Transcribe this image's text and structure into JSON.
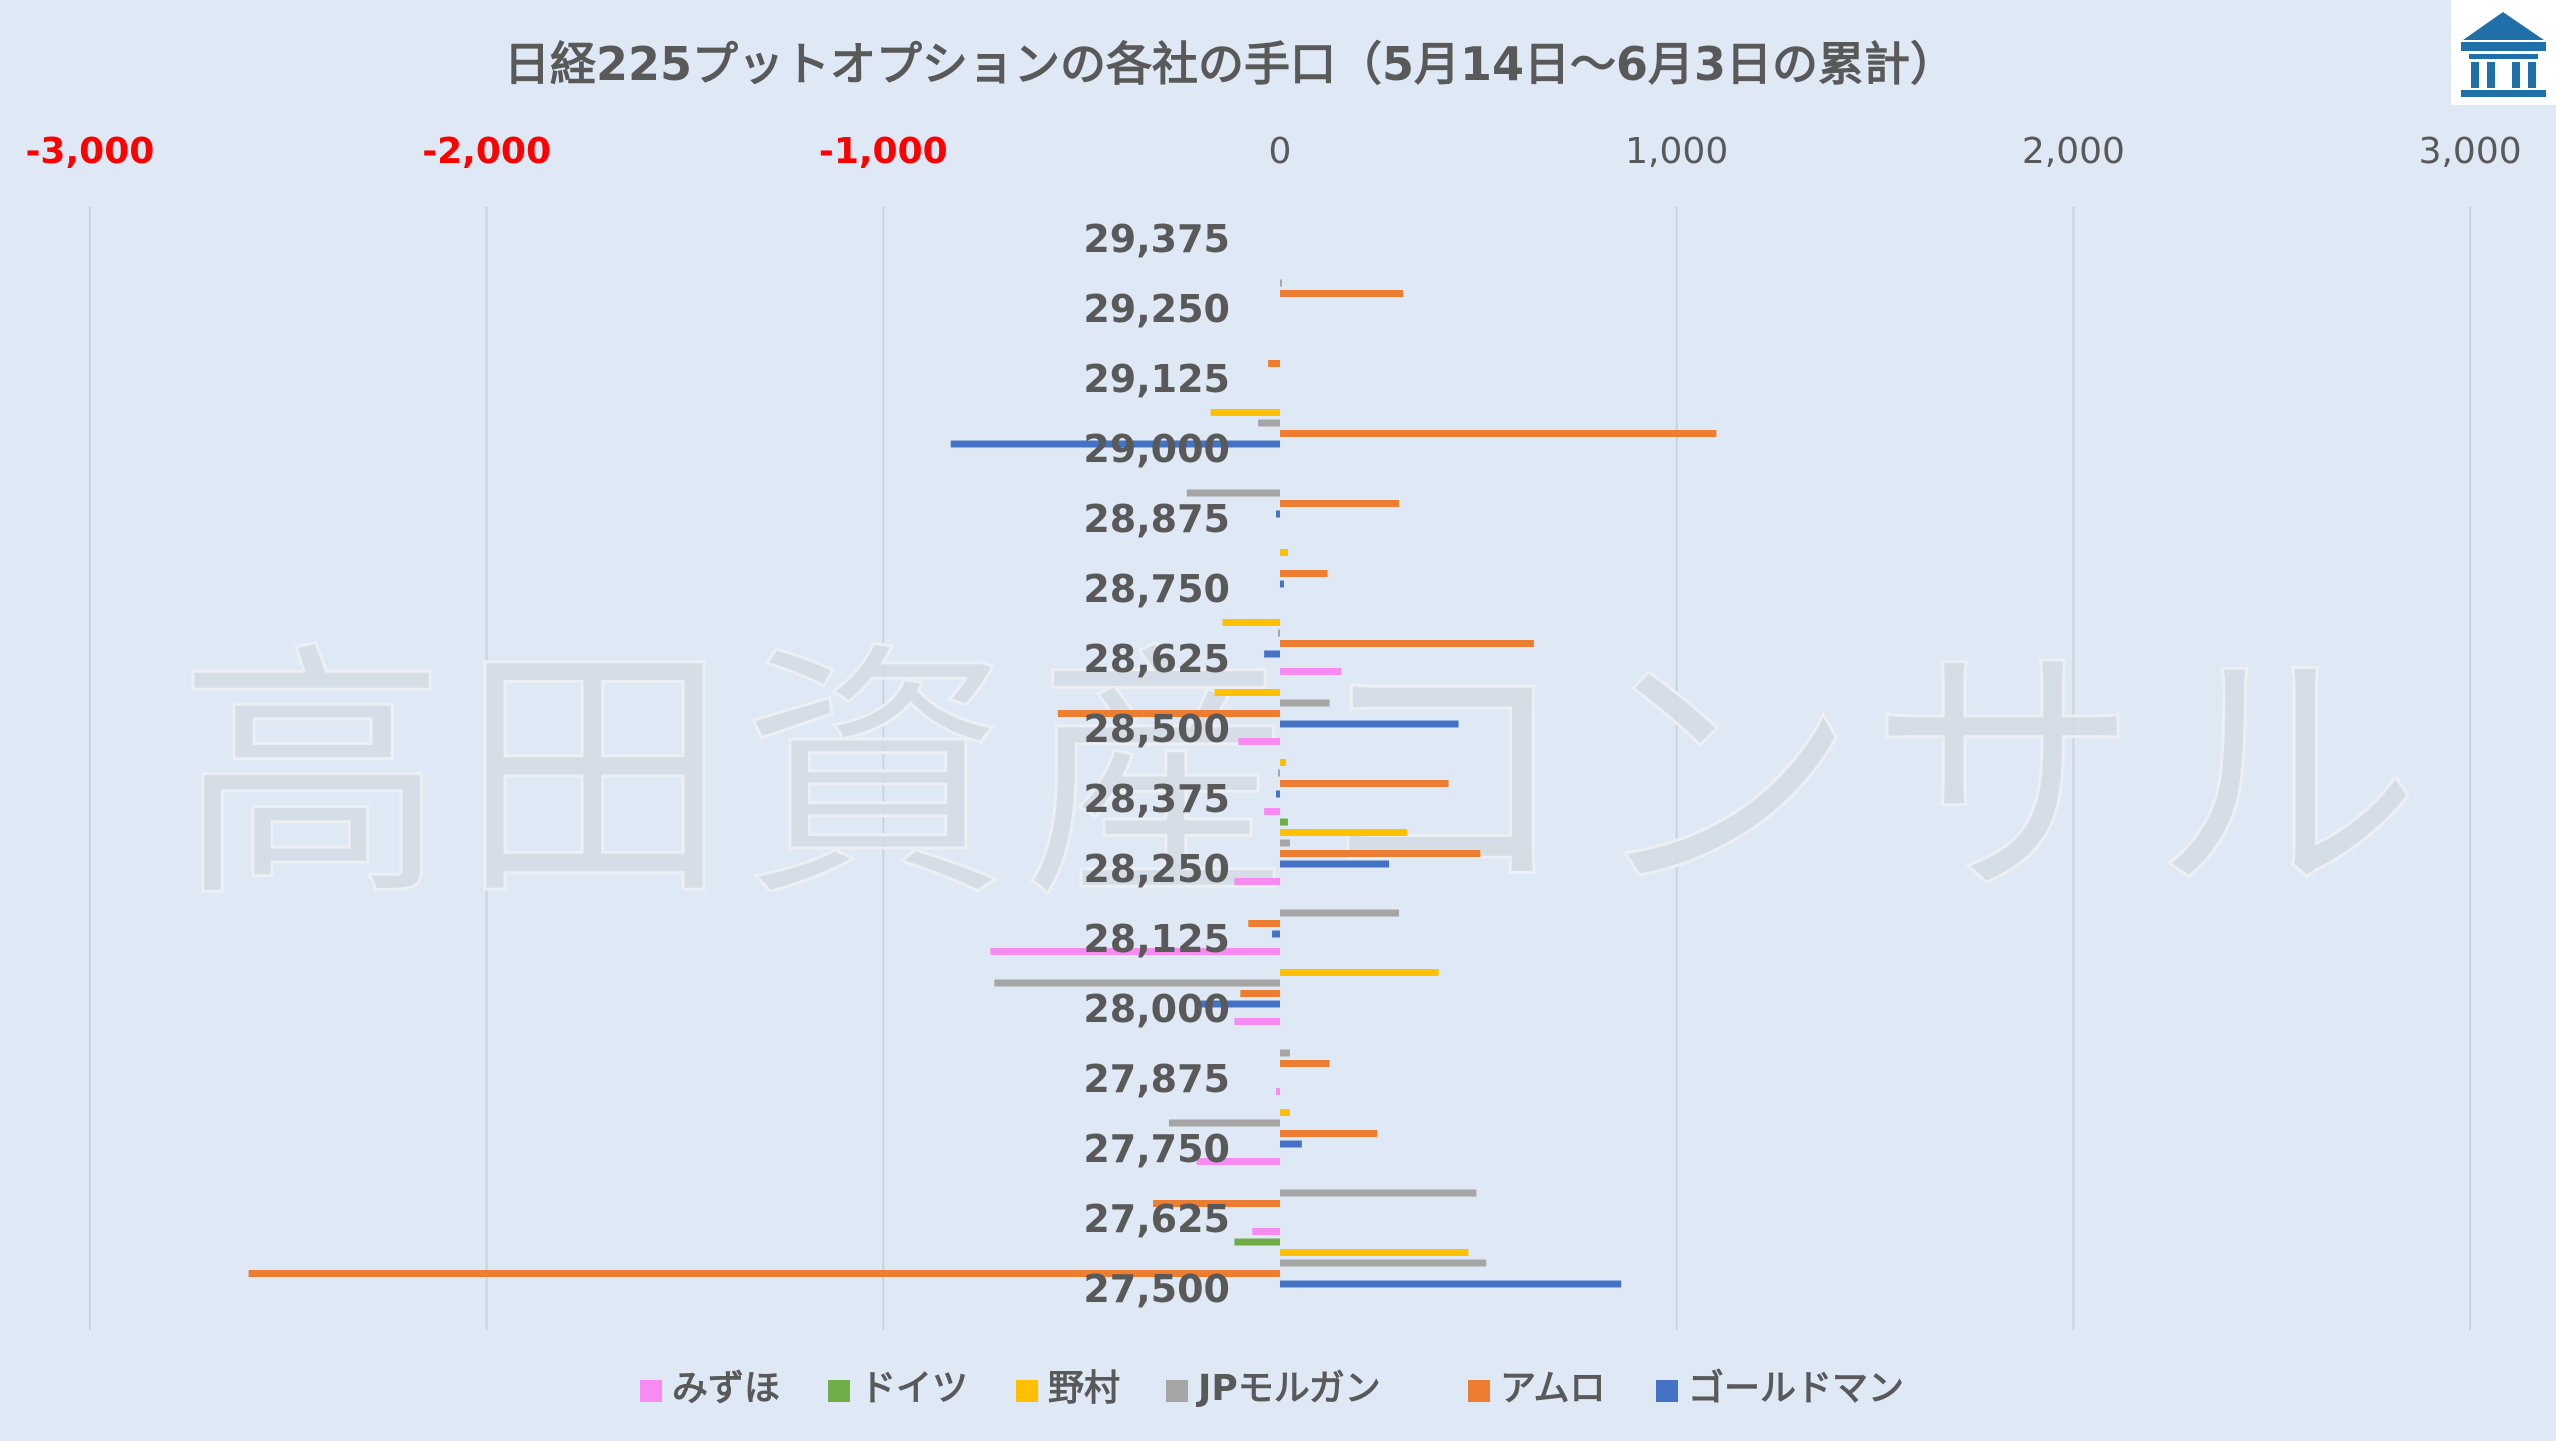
{
  "chart_data": {
    "type": "bar",
    "orientation": "horizontal",
    "title": "日経225プットオプションの各社の手口（5月14日〜6月3日の累計）",
    "xlabel": "",
    "ylabel": "",
    "xlim": [
      -3000,
      3000
    ],
    "x_ticks": [
      {
        "value": -3000,
        "label": "-3,000",
        "negative": true
      },
      {
        "value": -2000,
        "label": "-2,000",
        "negative": true
      },
      {
        "value": -1000,
        "label": "-1,000",
        "negative": true
      },
      {
        "value": 0,
        "label": "0",
        "negative": false
      },
      {
        "value": 1000,
        "label": "1,000",
        "negative": false
      },
      {
        "value": 2000,
        "label": "2,000",
        "negative": false
      },
      {
        "value": 3000,
        "label": "3,000",
        "negative": false
      }
    ],
    "categories": [
      "29,375",
      "29,250",
      "29,125",
      "29,000",
      "28,875",
      "28,750",
      "28,625",
      "28,500",
      "28,375",
      "28,250",
      "28,125",
      "28,000",
      "27,875",
      "27,750",
      "27,625",
      "27,500"
    ],
    "series": [
      {
        "name": "みずほ",
        "color": "#f78bf2",
        "values": [
          0,
          0,
          0,
          0,
          0,
          0,
          0,
          155,
          -105,
          -40,
          -115,
          -730,
          -115,
          -10,
          -210,
          -70
        ]
      },
      {
        "name": "ドイツ",
        "color": "#70ad47",
        "values": [
          0,
          0,
          0,
          0,
          0,
          0,
          0,
          0,
          0,
          20,
          0,
          0,
          0,
          0,
          0,
          -115
        ]
      },
      {
        "name": "野村",
        "color": "#ffc000",
        "values": [
          0,
          0,
          0,
          -175,
          0,
          20,
          -145,
          -165,
          15,
          320,
          0,
          400,
          0,
          25,
          0,
          475
        ]
      },
      {
        "name": "JPモルガン",
        "color": "#a5a5a5",
        "values": [
          0,
          5,
          0,
          -55,
          -235,
          0,
          -5,
          125,
          -5,
          25,
          300,
          -720,
          25,
          -280,
          495,
          520
        ]
      },
      {
        "name": "アムロ",
        "color": "#ed7d31",
        "values": [
          0,
          310,
          -30,
          1100,
          300,
          120,
          640,
          -560,
          425,
          505,
          -80,
          -100,
          125,
          245,
          -320,
          -2600
        ]
      },
      {
        "name": "ゴールドマン",
        "color": "#4472c4",
        "values": [
          0,
          0,
          0,
          -830,
          -10,
          10,
          -40,
          450,
          -10,
          275,
          -20,
          -200,
          0,
          55,
          0,
          860
        ]
      }
    ],
    "grid": true,
    "legend_position": "bottom",
    "watermark": "高田資産コンサル",
    "colors": {
      "background": "#dfe9f5",
      "negative_tick": "#ff0000",
      "text": "#595959",
      "logo": "#1f6fa8"
    }
  }
}
